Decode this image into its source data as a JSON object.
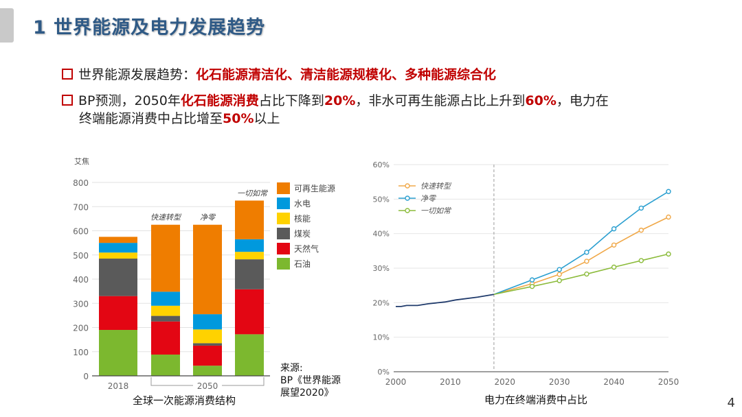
{
  "title": "1 世界能源及电力发展趋势",
  "bullets": [
    {
      "prefix": "世界能源发展趋势：",
      "highlight": "化石能源清洁化、清洁能源规模化、多种能源综合化"
    },
    {
      "parts": [
        "BP预测，2050年",
        "化石能源消费",
        "占比下降到",
        "20%",
        "，非水可再生能源占比上升到",
        "60%",
        "，电力在"
      ],
      "line2": [
        "终端能源消费中占比增至",
        "50%",
        "以上"
      ]
    }
  ],
  "source": {
    "line1": "来源:",
    "line2": "BP《世界能源",
    "line3": "展望2020》"
  },
  "page_number": "4",
  "chart_data": [
    {
      "type": "bar",
      "stacked": true,
      "title": "全球一次能源消费结构",
      "ylabel": "艾焦",
      "ylim": [
        0,
        800
      ],
      "yticks": [
        0,
        100,
        200,
        300,
        400,
        500,
        600,
        700,
        800
      ],
      "categories": [
        "2018",
        "快速转型",
        "净零",
        "一切如常"
      ],
      "x_group_labels": [
        "2018",
        "2050"
      ],
      "bar_labels": [
        "",
        "快速转型",
        "净零",
        "一切如常"
      ],
      "legend_placement": "right",
      "series": [
        {
          "name": "石油",
          "color": "#7cb82f",
          "values": [
            190,
            88,
            42,
            172
          ]
        },
        {
          "name": "天然气",
          "color": "#e30613",
          "values": [
            140,
            137,
            83,
            186
          ]
        },
        {
          "name": "煤炭",
          "color": "#5a5a5a",
          "values": [
            155,
            23,
            10,
            124
          ]
        },
        {
          "name": "核能",
          "color": "#ffd200",
          "values": [
            25,
            42,
            57,
            31
          ]
        },
        {
          "name": "水电",
          "color": "#0099dd",
          "values": [
            40,
            58,
            63,
            52
          ]
        },
        {
          "name": "可再生能源",
          "color": "#ef7d00",
          "values": [
            25,
            277,
            370,
            160
          ]
        }
      ]
    },
    {
      "type": "line",
      "title": "电力在终端消费中占比",
      "xlim": [
        2000,
        2050
      ],
      "ylim": [
        0,
        60
      ],
      "xticks": [
        "2000",
        "2010",
        "2020",
        "2030",
        "2040",
        "2050"
      ],
      "yticks": [
        "0%",
        "10%",
        "20%",
        "30%",
        "40%",
        "50%",
        "60%"
      ],
      "grid": true,
      "legend_placement": "top-left",
      "history": {
        "color": "#1f3a6b",
        "x": [
          2000,
          2001,
          2002,
          2004,
          2006,
          2009,
          2011,
          2015,
          2018
        ],
        "y": [
          18.9,
          18.9,
          19.2,
          19.2,
          19.7,
          20.2,
          20.8,
          21.6,
          22.4
        ]
      },
      "divider_x": 2018,
      "series": [
        {
          "name": "快速转型",
          "color": "#f0a848",
          "x": [
            2018,
            2025,
            2030,
            2035,
            2040,
            2045,
            2050
          ],
          "y": [
            22.4,
            25.5,
            28.2,
            32.0,
            36.7,
            41.0,
            44.8
          ]
        },
        {
          "name": "净零",
          "color": "#2a9fd0",
          "x": [
            2018,
            2025,
            2030,
            2035,
            2040,
            2045,
            2050
          ],
          "y": [
            22.4,
            26.6,
            29.6,
            34.6,
            41.4,
            47.4,
            52.2
          ]
        },
        {
          "name": "一切如常",
          "color": "#8bbb3a",
          "x": [
            2018,
            2025,
            2030,
            2035,
            2040,
            2045,
            2050
          ],
          "y": [
            22.4,
            24.7,
            26.4,
            28.3,
            30.3,
            32.2,
            34.1
          ]
        }
      ]
    }
  ]
}
